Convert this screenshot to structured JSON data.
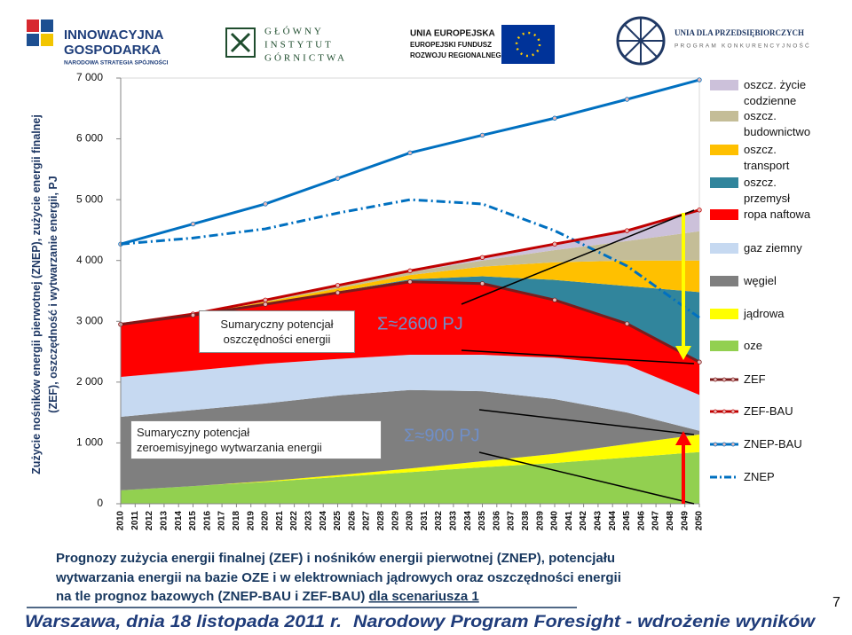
{
  "header": {
    "logos": [
      "INNOWACYJNA",
      "GOSPODARKA",
      "NARODOWA STRATEGIA SPÓJNOŚCI",
      "GŁÓWNY",
      "INSTYTUT",
      "GÓRNICTWA",
      "UNIA EUROPEJSKA",
      "EUROPEJSKI FUNDUSZ",
      "ROZWOJU REGIONALNEGO",
      "UNIA DLA PRZEDSIĘBIORCZYCH",
      "PROGRAM KONKURENCYJNOŚĆ"
    ]
  },
  "chart_data": {
    "type": "area",
    "ylabel": [
      "Zużycie nośników energii pierwotnej (ZNEP), zużycie energii finalnej",
      "(ZEF), oszczędność i wytwarzanie energii, PJ"
    ],
    "x": [
      2010,
      2015,
      2020,
      2025,
      2030,
      2035,
      2040,
      2045,
      2050
    ],
    "xlim": [
      2010,
      2050
    ],
    "xticks": [
      2010,
      2011,
      2012,
      2013,
      2014,
      2015,
      2016,
      2017,
      2018,
      2019,
      2020,
      2021,
      2022,
      2023,
      2024,
      2025,
      2026,
      2027,
      2028,
      2029,
      2030,
      2031,
      2032,
      2033,
      2034,
      2035,
      2036,
      2037,
      2038,
      2039,
      2040,
      2041,
      2042,
      2043,
      2044,
      2045,
      2046,
      2047,
      2048,
      2049,
      2050
    ],
    "ylim": [
      0,
      7000
    ],
    "yticks": [
      0,
      {
        "value": 1000,
        "label": "1 000"
      },
      {
        "value": 2000,
        "label": "2 000"
      },
      {
        "value": 3000,
        "label": "3 000"
      },
      {
        "value": 4000,
        "label": "4 000"
      },
      {
        "value": 5000,
        "label": "5 000"
      },
      {
        "value": 6000,
        "label": "6 000"
      },
      {
        "value": 7000,
        "label": "7 000"
      }
    ],
    "legend": "right",
    "series": [
      {
        "name": "oze",
        "color": "#92d050",
        "style": "area",
        "values": [
          220,
          290,
          360,
          440,
          520,
          600,
          670,
          760,
          850
        ]
      },
      {
        "name": "jądrowa",
        "color": "#ffff00",
        "style": "area",
        "values": [
          0,
          0,
          10,
          30,
          60,
          100,
          150,
          220,
          290
        ]
      },
      {
        "name": "węgiel",
        "color": "#7f7f7f",
        "style": "area",
        "values": [
          1210,
          1250,
          1280,
          1310,
          1290,
          1150,
          900,
          520,
          60
        ]
      },
      {
        "name": "gaz ziemny",
        "color": "#c6d9f1",
        "style": "area",
        "values": [
          655,
          650,
          650,
          600,
          580,
          600,
          680,
          780,
          590
        ]
      },
      {
        "name": "ropa naftowa",
        "color": "#ff0000",
        "style": "area",
        "values": [
          865,
          910,
          980,
          1090,
          1200,
          1170,
          950,
          680,
          540
        ]
      },
      {
        "name": "oszcz. przemysł",
        "color": "#31859c",
        "style": "area",
        "values": [
          0,
          0,
          10,
          20,
          40,
          120,
          330,
          620,
          1150
        ]
      },
      {
        "name": "oszcz. transport",
        "color": "#ffc000",
        "style": "area",
        "values": [
          0,
          10,
          30,
          50,
          70,
          160,
          290,
          420,
          520
        ]
      },
      {
        "name": "oszcz. budownictwo",
        "color": "#c4bd97",
        "style": "area",
        "values": [
          0,
          5,
          20,
          35,
          50,
          100,
          200,
          320,
          480
        ]
      },
      {
        "name": "oszcz. życie codzienne",
        "color": "#ccc1da",
        "style": "area",
        "values": [
          0,
          5,
          10,
          15,
          20,
          50,
          100,
          170,
          350
        ]
      },
      {
        "name": "ZEF",
        "color": "#7b1c1c",
        "style": "line",
        "marker": true,
        "values": [
          2950,
          3100,
          3280,
          3470,
          3650,
          3620,
          3350,
          2960,
          2330
        ]
      },
      {
        "name": "ZEF-BAU",
        "color": "#c00000",
        "style": "line",
        "marker": true,
        "values": [
          2950,
          3120,
          3350,
          3590,
          3830,
          4050,
          4270,
          4490,
          4830
        ]
      },
      {
        "name": "ZNEP-BAU",
        "color": "#0070c0",
        "style": "line",
        "marker": true,
        "values": [
          4270,
          4600,
          4930,
          5350,
          5770,
          6060,
          6340,
          6650,
          6970
        ]
      },
      {
        "name": "ZNEP",
        "color": "#0070c0",
        "style": "line",
        "dash": true,
        "values": [
          4270,
          4370,
          4520,
          4780,
          5000,
          4930,
          4490,
          3910,
          3060
        ]
      }
    ],
    "annotations": [
      [
        "Sumaryczny potencjał",
        "oszczędności energii"
      ],
      [
        "Sumaryczny potencjał",
        "zeroemisyjnego wytwarzania energii"
      ],
      "Σ≈2600 PJ",
      "Σ≈900 PJ"
    ]
  },
  "caption": [
    "Prognozy zużycia energii finalnej (ZEF) i nośników energii pierwotnej (ZNEP), potencjału",
    "wytwarzania energii na bazie OZE i w elektrowniach jądrowych oraz oszczędności energii",
    "na tle prognoz bazowych (ZNEP-BAU i ZEF-BAU) ",
    "dla scenariusza 1"
  ],
  "footer": [
    "Warszawa, dnia 18 listopada 2011 r.",
    "Narodowy Program Foresight - wdrożenie wyników"
  ],
  "page_number": "7"
}
